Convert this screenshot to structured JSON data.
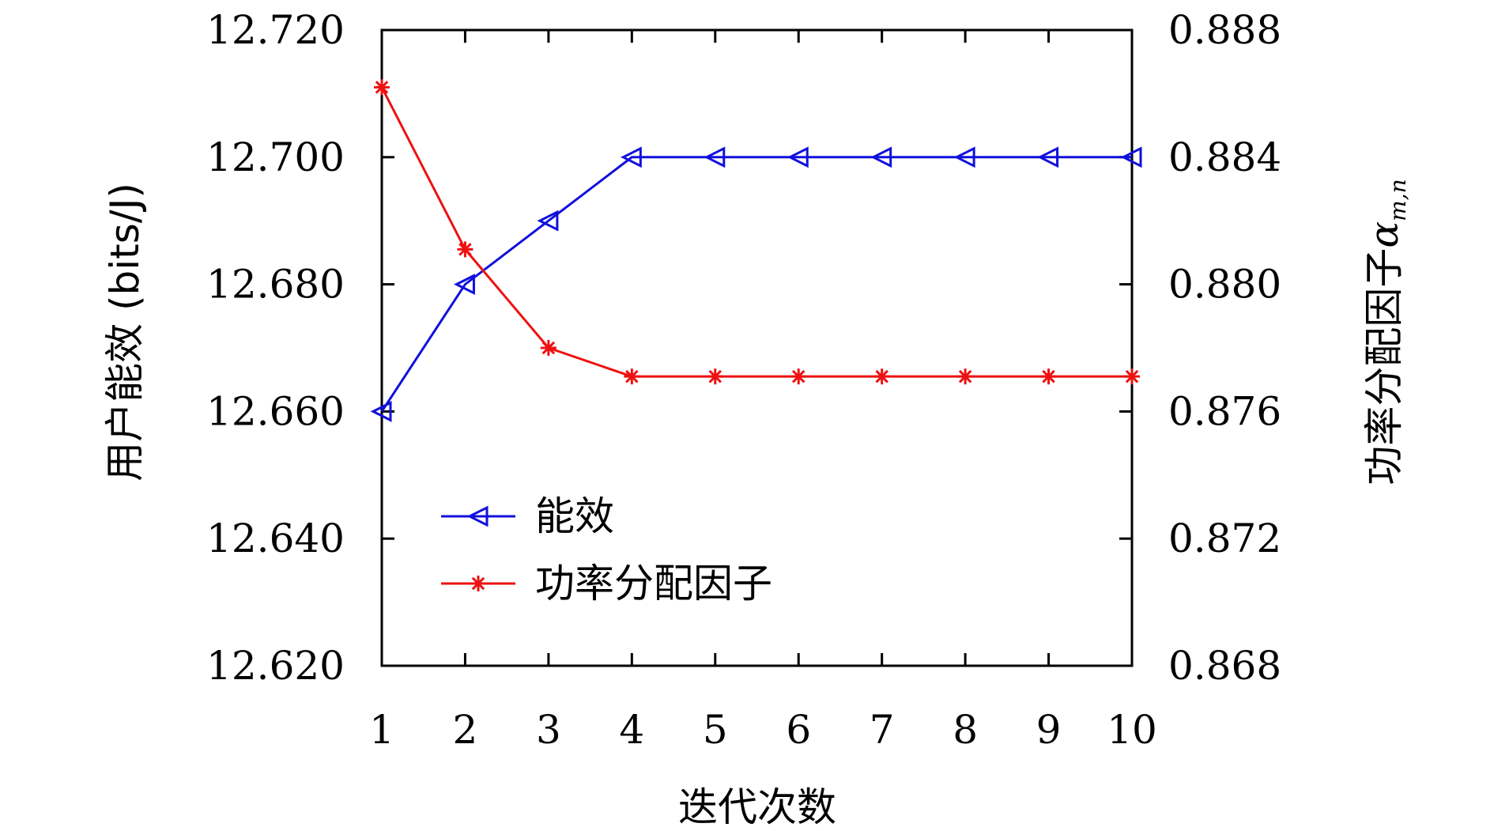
{
  "chart_data": {
    "type": "line",
    "x": [
      1,
      2,
      3,
      4,
      5,
      6,
      7,
      8,
      9,
      10
    ],
    "xlabel": "迭代次数",
    "ylabel_left": "用户能效 (bits/J)",
    "ylabel_right_text": "功率分配因子",
    "ylabel_right_symbol": "α",
    "ylabel_right_subscript": "m,n",
    "xlim": [
      1,
      10
    ],
    "ylim_left": [
      12.62,
      12.72
    ],
    "ylim_right": [
      0.868,
      0.888
    ],
    "xticks": [
      "1",
      "2",
      "3",
      "4",
      "5",
      "6",
      "7",
      "8",
      "9",
      "10"
    ],
    "yticks_left": [
      "12.620",
      "12.640",
      "12.660",
      "12.680",
      "12.700",
      "12.720"
    ],
    "yticks_right": [
      "0.868",
      "0.872",
      "0.876",
      "0.880",
      "0.884",
      "0.888"
    ],
    "grid": false,
    "legend_position": "bottom-left",
    "series": [
      {
        "name": "能效",
        "axis": "left",
        "color": "#1010dd",
        "marker": "triangle-left",
        "values": [
          12.66,
          12.68,
          12.69,
          12.7,
          12.7,
          12.7,
          12.7,
          12.7,
          12.7,
          12.7
        ]
      },
      {
        "name": "功率分配因子",
        "axis": "right",
        "color": "#ee1111",
        "marker": "asterisk",
        "values": [
          0.8862,
          0.8811,
          0.878,
          0.8771,
          0.8771,
          0.8771,
          0.8771,
          0.8771,
          0.8771,
          0.8771
        ]
      }
    ]
  }
}
